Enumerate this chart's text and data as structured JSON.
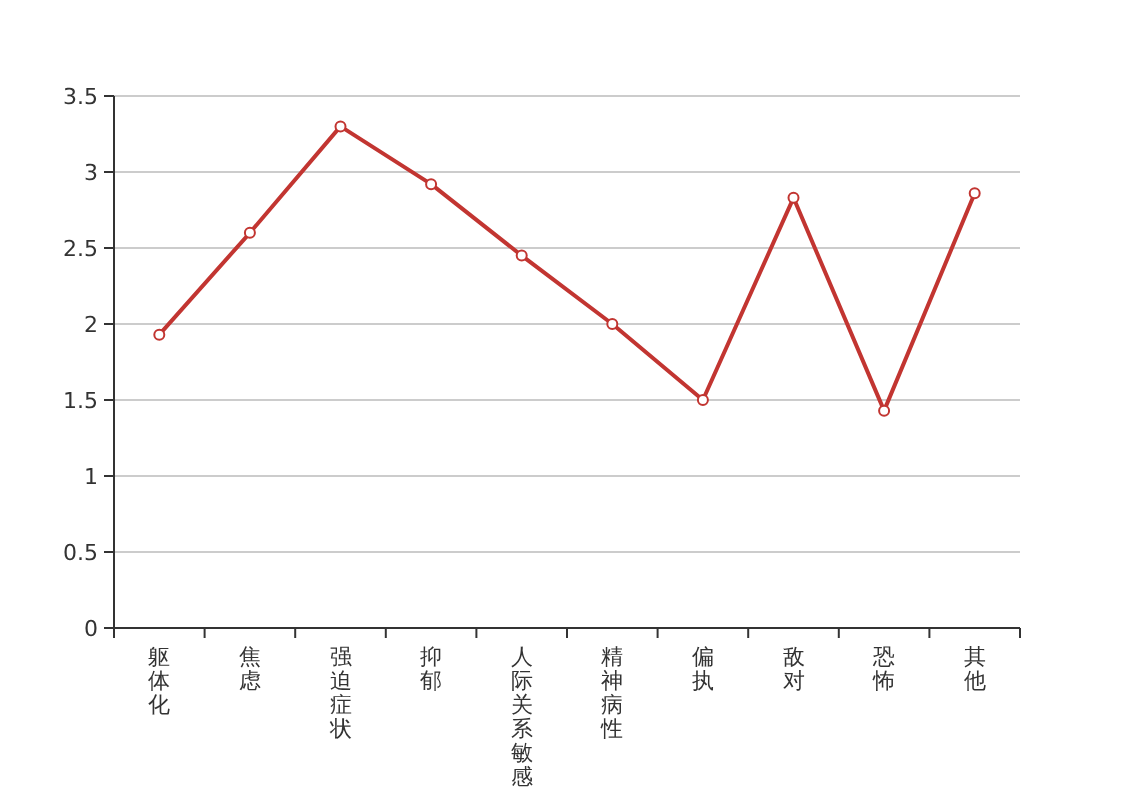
{
  "chart_data": {
    "type": "line",
    "categories": [
      "躯体化",
      "焦虑",
      "强迫症状",
      "抑郁",
      "人际关系敏感",
      "精神病性",
      "偏执",
      "敌对",
      "恐怖",
      "其他"
    ],
    "values": [
      1.93,
      2.6,
      3.3,
      2.92,
      2.45,
      2.0,
      1.5,
      2.83,
      1.43,
      2.86
    ],
    "color": "#c23531",
    "ylim": [
      0,
      3.5
    ],
    "yticks": [
      0,
      0.5,
      1,
      1.5,
      2,
      2.5,
      3,
      3.5
    ],
    "grid": "y",
    "marker": "circle",
    "line_style": "solid"
  }
}
